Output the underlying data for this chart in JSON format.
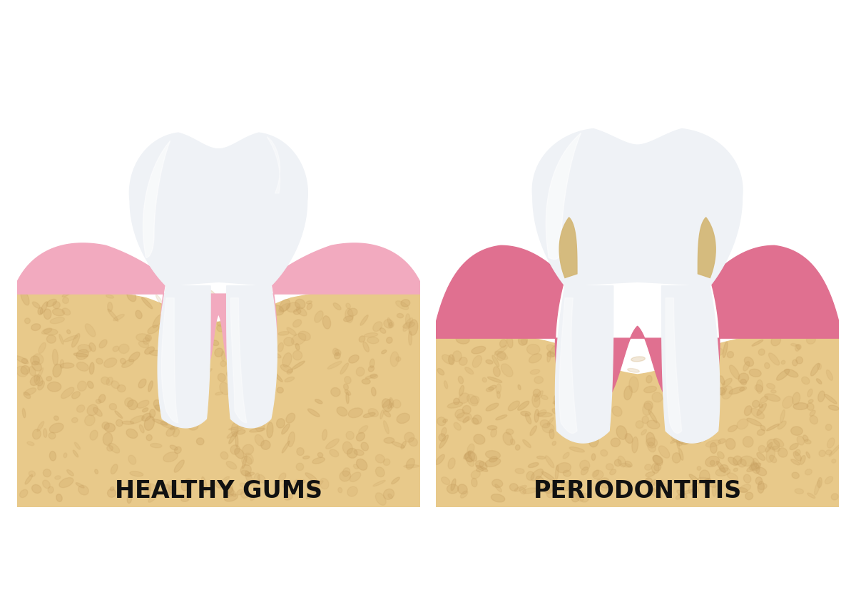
{
  "background_color": "#ffffff",
  "label_healthy": "HEALTHY GUMS",
  "label_periodontitis": "PERIODONTITIS",
  "label_fontsize": 24,
  "label_fontweight": "bold",
  "label_color": "#111111",
  "bone_color": "#E8C98A",
  "bone_edge_color": "#D4B070",
  "gum_healthy_color": "#F2AABF",
  "gum_healthy_dark": "#E890A8",
  "gum_periodontitis_color": "#E07090",
  "gum_periodontitis_dark": "#C85575",
  "tooth_base_color": "#D8E0E8",
  "tooth_mid_color": "#EFF2F6",
  "tooth_light_color": "#F8FAFC",
  "tooth_white": "#FFFFFF",
  "tartar_color": "#D4B878",
  "tartar_dark": "#C4A060",
  "spot_color": "#C8A060",
  "spot_alpha": 0.28
}
